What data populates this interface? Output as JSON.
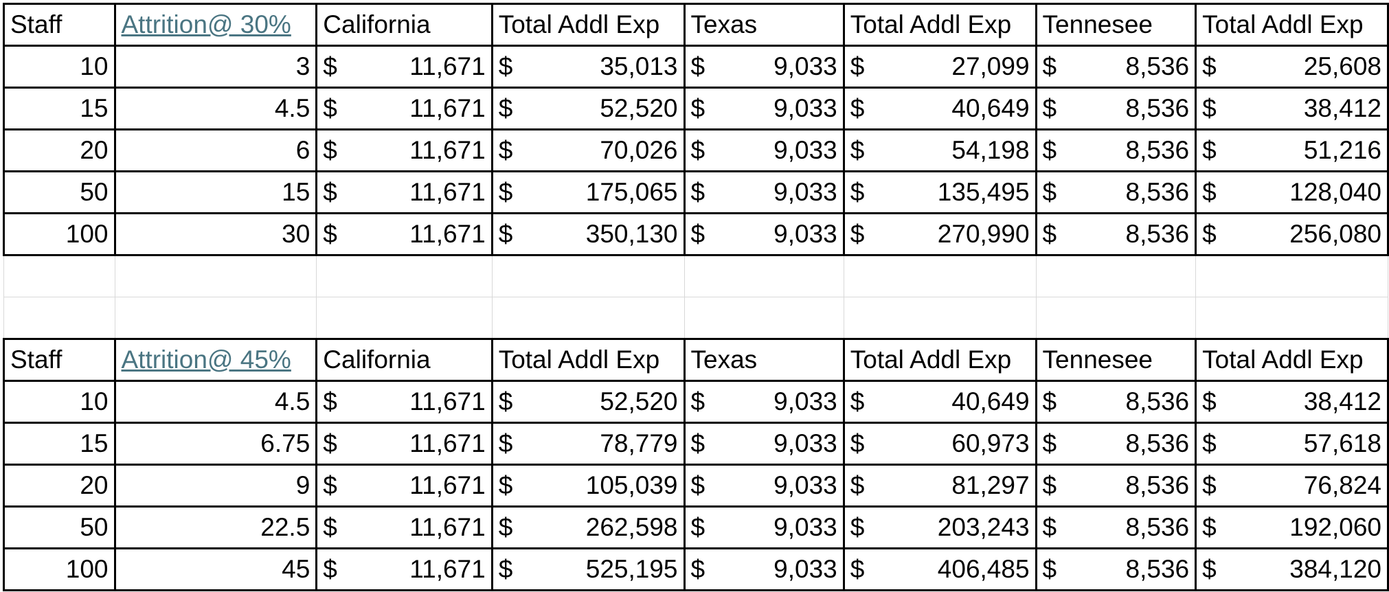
{
  "tables": [
    {
      "headers": [
        "Staff",
        "Attrition@ 30%",
        "California",
        "Total Addl Exp",
        "Texas",
        "Total Addl Exp",
        "Tennesee",
        "Total Addl Exp"
      ],
      "rows": [
        [
          "10",
          "3",
          "$",
          "11,671",
          "$",
          "35,013",
          "$",
          "9,033",
          "$",
          "27,099",
          "$",
          "8,536",
          "$",
          "25,608"
        ],
        [
          "15",
          "4.5",
          "$",
          "11,671",
          "$",
          "52,520",
          "$",
          "9,033",
          "$",
          "40,649",
          "$",
          "8,536",
          "$",
          "38,412"
        ],
        [
          "20",
          "6",
          "$",
          "11,671",
          "$",
          "70,026",
          "$",
          "9,033",
          "$",
          "54,198",
          "$",
          "8,536",
          "$",
          "51,216"
        ],
        [
          "50",
          "15",
          "$",
          "11,671",
          "$",
          "175,065",
          "$",
          "9,033",
          "$",
          "135,495",
          "$",
          "8,536",
          "$",
          "128,040"
        ],
        [
          "100",
          "30",
          "$",
          "11,671",
          "$",
          "350,130",
          "$",
          "9,033",
          "$",
          "270,990",
          "$",
          "8,536",
          "$",
          "256,080"
        ]
      ]
    },
    {
      "headers": [
        "Staff",
        "Attrition@ 45%",
        "California",
        "Total Addl Exp",
        "Texas",
        "Total Addl Exp",
        "Tennesee",
        "Total Addl Exp"
      ],
      "rows": [
        [
          "10",
          "4.5",
          "$",
          "11,671",
          "$",
          "52,520",
          "$",
          "9,033",
          "$",
          "40,649",
          "$",
          "8,536",
          "$",
          "38,412"
        ],
        [
          "15",
          "6.75",
          "$",
          "11,671",
          "$",
          "78,779",
          "$",
          "9,033",
          "$",
          "60,973",
          "$",
          "8,536",
          "$",
          "57,618"
        ],
        [
          "20",
          "9",
          "$",
          "11,671",
          "$",
          "105,039",
          "$",
          "9,033",
          "$",
          "81,297",
          "$",
          "8,536",
          "$",
          "76,824"
        ],
        [
          "50",
          "22.5",
          "$",
          "11,671",
          "$",
          "262,598",
          "$",
          "9,033",
          "$",
          "203,243",
          "$",
          "8,536",
          "$",
          "192,060"
        ],
        [
          "100",
          "45",
          "$",
          "11,671",
          "$",
          "525,195",
          "$",
          "9,033",
          "$",
          "406,485",
          "$",
          "8,536",
          "$",
          "384,120"
        ]
      ]
    }
  ],
  "colors": {
    "link": "#4a7582",
    "border": "#000000",
    "gridline": "#d8d8d8"
  }
}
